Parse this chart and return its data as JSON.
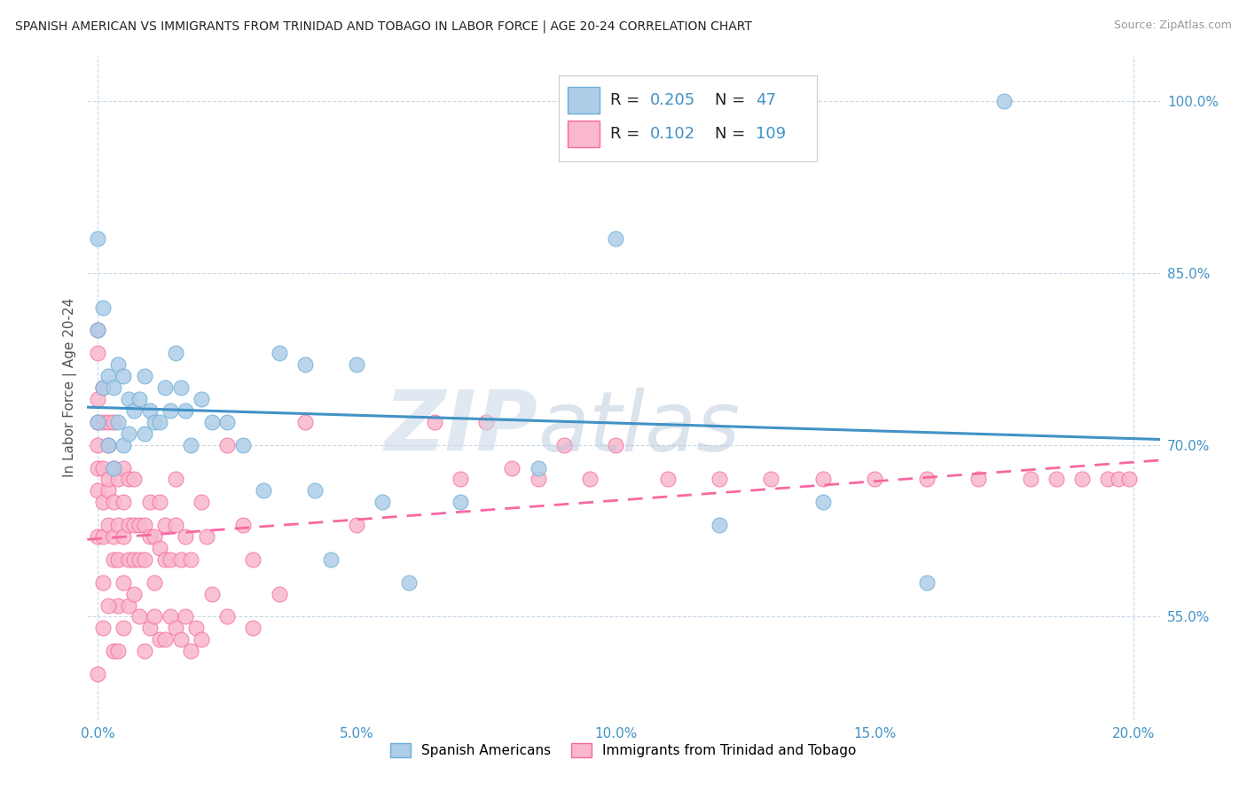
{
  "title": "SPANISH AMERICAN VS IMMIGRANTS FROM TRINIDAD AND TOBAGO IN LABOR FORCE | AGE 20-24 CORRELATION CHART",
  "source": "Source: ZipAtlas.com",
  "ylabel": "In Labor Force | Age 20-24",
  "xlim": [
    -0.002,
    0.205
  ],
  "ylim": [
    0.46,
    1.04
  ],
  "xticks": [
    0.0,
    0.05,
    0.1,
    0.15,
    0.2
  ],
  "xtick_labels": [
    "0.0%",
    "5.0%",
    "10.0%",
    "15.0%",
    "20.0%"
  ],
  "yticks": [
    0.55,
    0.7,
    0.85,
    1.0
  ],
  "ytick_labels": [
    "55.0%",
    "70.0%",
    "85.0%",
    "100.0%"
  ],
  "blue_face": "#aecde8",
  "blue_edge": "#6baed6",
  "pink_face": "#f9b8cc",
  "pink_edge": "#f768a1",
  "blue_line": "#4292c6",
  "pink_line": "#f768a1",
  "tick_color": "#4292c6",
  "grid_color": "#c8d8e8",
  "watermark_zip": "ZIP",
  "watermark_atlas": "atlas",
  "legend_r1": "0.205",
  "legend_n1": "47",
  "legend_r2": "0.102",
  "legend_n2": "109",
  "blue_x": [
    0.0,
    0.0,
    0.0,
    0.001,
    0.001,
    0.002,
    0.002,
    0.003,
    0.003,
    0.004,
    0.004,
    0.005,
    0.005,
    0.006,
    0.006,
    0.007,
    0.008,
    0.009,
    0.009,
    0.01,
    0.011,
    0.012,
    0.013,
    0.014,
    0.015,
    0.016,
    0.017,
    0.018,
    0.02,
    0.022,
    0.025,
    0.028,
    0.032,
    0.035,
    0.04,
    0.042,
    0.045,
    0.05,
    0.055,
    0.06,
    0.07,
    0.085,
    0.1,
    0.12,
    0.14,
    0.16,
    0.175
  ],
  "blue_y": [
    0.72,
    0.8,
    0.88,
    0.75,
    0.82,
    0.7,
    0.76,
    0.68,
    0.75,
    0.72,
    0.77,
    0.7,
    0.76,
    0.71,
    0.74,
    0.73,
    0.74,
    0.71,
    0.76,
    0.73,
    0.72,
    0.72,
    0.75,
    0.73,
    0.78,
    0.75,
    0.73,
    0.7,
    0.74,
    0.72,
    0.72,
    0.7,
    0.66,
    0.78,
    0.77,
    0.66,
    0.6,
    0.77,
    0.65,
    0.58,
    0.65,
    0.68,
    0.88,
    0.63,
    0.65,
    0.58,
    1.0
  ],
  "pink_x": [
    0.0,
    0.0,
    0.0,
    0.0,
    0.0,
    0.0,
    0.0,
    0.0,
    0.001,
    0.001,
    0.001,
    0.001,
    0.001,
    0.001,
    0.002,
    0.002,
    0.002,
    0.002,
    0.002,
    0.003,
    0.003,
    0.003,
    0.003,
    0.003,
    0.004,
    0.004,
    0.004,
    0.004,
    0.005,
    0.005,
    0.005,
    0.005,
    0.006,
    0.006,
    0.006,
    0.007,
    0.007,
    0.007,
    0.008,
    0.008,
    0.009,
    0.009,
    0.01,
    0.01,
    0.011,
    0.011,
    0.012,
    0.012,
    0.013,
    0.013,
    0.014,
    0.015,
    0.015,
    0.016,
    0.017,
    0.018,
    0.02,
    0.021,
    0.022,
    0.025,
    0.028,
    0.03,
    0.035,
    0.04,
    0.05,
    0.065,
    0.07,
    0.075,
    0.08,
    0.085,
    0.09,
    0.095,
    0.1,
    0.11,
    0.12,
    0.13,
    0.14,
    0.15,
    0.16,
    0.17,
    0.18,
    0.185,
    0.19,
    0.195,
    0.197,
    0.199,
    0.0,
    0.001,
    0.002,
    0.003,
    0.004,
    0.005,
    0.006,
    0.007,
    0.008,
    0.009,
    0.01,
    0.011,
    0.012,
    0.013,
    0.014,
    0.015,
    0.016,
    0.017,
    0.018,
    0.019,
    0.02,
    0.025,
    0.03
  ],
  "pink_y": [
    0.68,
    0.72,
    0.74,
    0.78,
    0.62,
    0.66,
    0.7,
    0.8,
    0.68,
    0.72,
    0.75,
    0.65,
    0.62,
    0.58,
    0.7,
    0.66,
    0.72,
    0.63,
    0.67,
    0.65,
    0.68,
    0.62,
    0.6,
    0.72,
    0.63,
    0.67,
    0.6,
    0.56,
    0.65,
    0.62,
    0.68,
    0.58,
    0.63,
    0.67,
    0.6,
    0.63,
    0.67,
    0.6,
    0.63,
    0.6,
    0.63,
    0.6,
    0.62,
    0.65,
    0.62,
    0.58,
    0.61,
    0.65,
    0.6,
    0.63,
    0.6,
    0.63,
    0.67,
    0.6,
    0.62,
    0.6,
    0.65,
    0.62,
    0.57,
    0.7,
    0.63,
    0.6,
    0.57,
    0.72,
    0.63,
    0.72,
    0.67,
    0.72,
    0.68,
    0.67,
    0.7,
    0.67,
    0.7,
    0.67,
    0.67,
    0.67,
    0.67,
    0.67,
    0.67,
    0.67,
    0.67,
    0.67,
    0.67,
    0.67,
    0.67,
    0.67,
    0.5,
    0.54,
    0.56,
    0.52,
    0.52,
    0.54,
    0.56,
    0.57,
    0.55,
    0.52,
    0.54,
    0.55,
    0.53,
    0.53,
    0.55,
    0.54,
    0.53,
    0.55,
    0.52,
    0.54,
    0.53,
    0.55,
    0.54
  ]
}
